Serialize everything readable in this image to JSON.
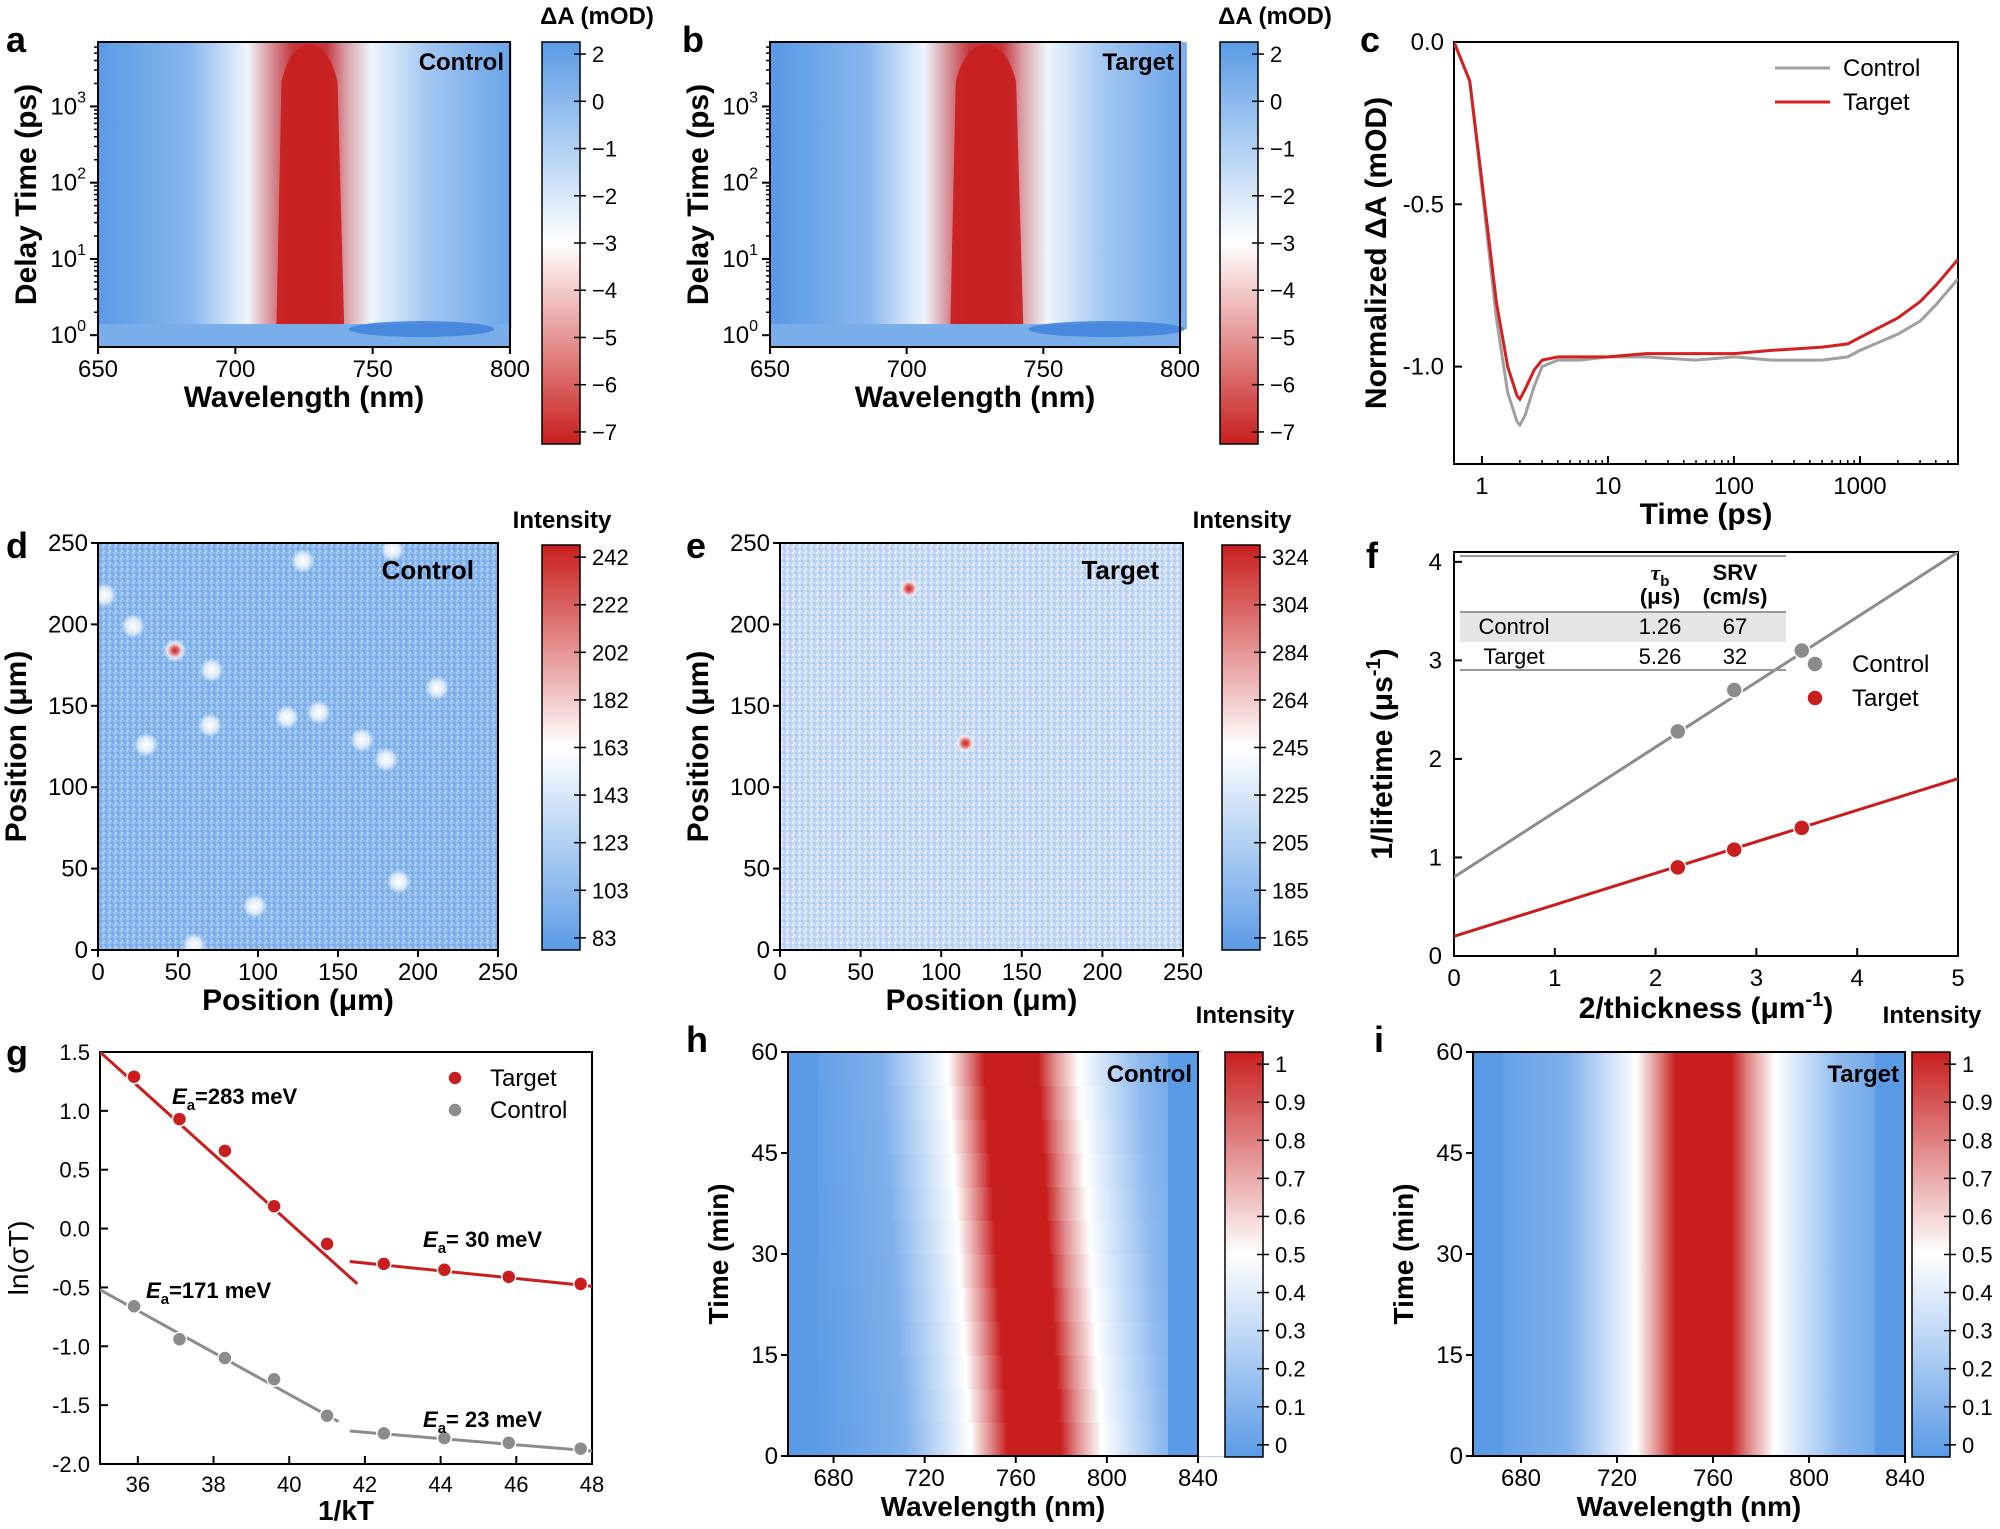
{
  "panels": [
    {
      "letter": "a"
    },
    {
      "letter": "b"
    },
    {
      "letter": "c"
    },
    {
      "letter": "d"
    },
    {
      "letter": "e"
    },
    {
      "letter": "f"
    },
    {
      "letter": "g"
    },
    {
      "letter": "h"
    },
    {
      "letter": "i"
    }
  ],
  "colors": {
    "red": "#c81e1e",
    "blue": "#5b9be6",
    "white": "#ffffff",
    "gray": "#8c8c8c",
    "control_line": "#a0a0a0",
    "target_line": "#d42020"
  },
  "chart_data": [
    {
      "id": "a",
      "type": "heatmap",
      "annotation": "Control",
      "xlabel": "Wavelength (nm)",
      "ylabel": "Delay Time (ps)",
      "x_ticks": [
        "650",
        "700",
        "750",
        "800"
      ],
      "y_ticks": [
        {
          "base": "10",
          "exp": "0"
        },
        {
          "base": "10",
          "exp": "1"
        },
        {
          "base": "10",
          "exp": "2"
        },
        {
          "base": "10",
          "exp": "3"
        }
      ],
      "xlim": [
        650,
        800
      ],
      "ylim_log": [
        0.7,
        7000
      ],
      "band": {
        "center": 727,
        "halfwidth": 12,
        "start_delay": 1.4
      },
      "colorbar": {
        "title": "ΔA (mOD)",
        "ticks": [
          "2",
          "0",
          "−1",
          "−2",
          "−3",
          "−4",
          "−5",
          "−6",
          "−7"
        ],
        "range": [
          2.3,
          -7.2
        ]
      }
    },
    {
      "id": "b",
      "type": "heatmap",
      "annotation": "Target",
      "xlabel": "Wavelength (nm)",
      "ylabel": "Delay Time (ps)",
      "x_ticks": [
        "650",
        "700",
        "750",
        "800"
      ],
      "y_ticks": [
        {
          "base": "10",
          "exp": "0"
        },
        {
          "base": "10",
          "exp": "1"
        },
        {
          "base": "10",
          "exp": "2"
        },
        {
          "base": "10",
          "exp": "3"
        }
      ],
      "xlim": [
        650,
        800
      ],
      "ylim_log": [
        0.7,
        7000
      ],
      "band": {
        "center": 729,
        "halfwidth": 13,
        "start_delay": 1.4
      },
      "colorbar": {
        "title": "ΔA (mOD)",
        "ticks": [
          "2",
          "0",
          "−1",
          "−2",
          "−3",
          "−4",
          "−5",
          "−6",
          "−7"
        ],
        "range": [
          2.3,
          -7.2
        ]
      }
    },
    {
      "id": "c",
      "type": "line",
      "xscale": "log",
      "xlabel": "Time (ps)",
      "ylabel": "Normalized ΔA (mOD)",
      "xlim": [
        0.6,
        6000
      ],
      "ylim": [
        -1.3,
        0.0
      ],
      "x_ticks": [
        {
          "v": 1,
          "label": "1"
        },
        {
          "v": 10,
          "label": "10"
        },
        {
          "v": 100,
          "label": "100"
        },
        {
          "v": 1000,
          "label": "1000"
        }
      ],
      "y_ticks": [
        {
          "v": 0.0,
          "label": "0.0"
        },
        {
          "v": -0.5,
          "label": "-0.5"
        },
        {
          "v": -1.0,
          "label": "-1.0"
        }
      ],
      "legend": "top-right",
      "series": [
        {
          "name": "Control",
          "x": [
            0.6,
            0.8,
            1.0,
            1.3,
            1.6,
            1.9,
            2.0,
            2.2,
            2.6,
            3,
            4,
            6,
            10,
            20,
            50,
            100,
            200,
            500,
            800,
            1000,
            2000,
            3000,
            4000,
            6000
          ],
          "y": [
            0.0,
            -0.12,
            -0.45,
            -0.85,
            -1.08,
            -1.17,
            -1.18,
            -1.15,
            -1.06,
            -1.0,
            -0.98,
            -0.98,
            -0.97,
            -0.97,
            -0.98,
            -0.97,
            -0.98,
            -0.98,
            -0.97,
            -0.95,
            -0.9,
            -0.86,
            -0.81,
            -0.73
          ]
        },
        {
          "name": "Target",
          "x": [
            0.6,
            0.8,
            1.0,
            1.3,
            1.6,
            1.9,
            2.0,
            2.2,
            2.6,
            3,
            4,
            6,
            10,
            20,
            50,
            100,
            200,
            500,
            800,
            1000,
            2000,
            3000,
            4000,
            6000
          ],
          "y": [
            0.0,
            -0.12,
            -0.43,
            -0.8,
            -1.0,
            -1.09,
            -1.1,
            -1.07,
            -1.01,
            -0.98,
            -0.97,
            -0.97,
            -0.97,
            -0.96,
            -0.96,
            -0.96,
            -0.95,
            -0.94,
            -0.93,
            -0.91,
            -0.85,
            -0.8,
            -0.75,
            -0.67
          ]
        }
      ]
    },
    {
      "id": "d",
      "type": "heatmap",
      "annotation": "Control",
      "xlabel": "Position (μm)",
      "ylabel": "Position (μm)",
      "x_ticks": [
        "0",
        "50",
        "100",
        "150",
        "200",
        "250"
      ],
      "y_ticks": [
        "0",
        "50",
        "100",
        "150",
        "200",
        "250"
      ],
      "xlim": [
        0,
        250
      ],
      "ylim": [
        0,
        250
      ],
      "spots": [
        [
          184,
          246
        ],
        [
          128,
          239
        ],
        [
          22,
          199
        ],
        [
          48,
          184
        ],
        [
          71,
          172
        ],
        [
          118,
          143
        ],
        [
          138,
          146
        ],
        [
          165,
          129
        ],
        [
          180,
          117
        ],
        [
          212,
          161
        ],
        [
          70,
          138
        ],
        [
          30,
          126
        ],
        [
          188,
          42
        ],
        [
          98,
          27
        ],
        [
          60,
          3
        ],
        [
          4,
          218
        ]
      ],
      "strong_spots": [
        [
          48,
          184
        ]
      ],
      "colorbar": {
        "title": "Intensity",
        "ticks": [
          "242",
          "222",
          "202",
          "182",
          "163",
          "143",
          "123",
          "103",
          "83"
        ]
      }
    },
    {
      "id": "e",
      "type": "heatmap",
      "annotation": "Target",
      "xlabel": "Position (μm)",
      "ylabel": "Position (μm)",
      "x_ticks": [
        "0",
        "50",
        "100",
        "150",
        "200",
        "250"
      ],
      "y_ticks": [
        "0",
        "50",
        "100",
        "150",
        "200",
        "250"
      ],
      "xlim": [
        0,
        250
      ],
      "ylim": [
        0,
        250
      ],
      "spots": [
        [
          80,
          222
        ],
        [
          115,
          127
        ]
      ],
      "strong_spots": [
        [
          80,
          222
        ],
        [
          115,
          127
        ]
      ],
      "colorbar": {
        "title": "Intensity",
        "ticks": [
          "324",
          "304",
          "284",
          "264",
          "245",
          "225",
          "205",
          "185",
          "165"
        ]
      }
    },
    {
      "id": "f",
      "type": "scatter",
      "xlabel_main": "2/thickness (μm",
      "xlabel_sup": "-1",
      "xlabel_end": ")",
      "ylabel_main": "1/lifetime (μs",
      "ylabel_sup": "-1",
      "ylabel_end": ")",
      "xlim": [
        0,
        5
      ],
      "ylim": [
        0,
        4.1
      ],
      "x_ticks": [
        "0",
        "1",
        "2",
        "3",
        "4",
        "5"
      ],
      "y_ticks": [
        "0",
        "1",
        "2",
        "3",
        "4"
      ],
      "legend": "right",
      "series": [
        {
          "name": "Control",
          "x": [
            2.22,
            2.78,
            3.45
          ],
          "y": [
            2.28,
            2.7,
            3.1
          ],
          "fit": {
            "intercept": 0.8,
            "slope": 0.66
          }
        },
        {
          "name": "Target",
          "x": [
            2.22,
            2.78,
            3.45
          ],
          "y": [
            0.9,
            1.08,
            1.3
          ],
          "fit": {
            "intercept": 0.2,
            "slope": 0.32
          }
        }
      ],
      "table": {
        "headers": [
          {
            "sym": "τ",
            "sub": "b",
            "unit": "(μs)"
          },
          {
            "sym": "SRV",
            "sub": "",
            "unit": "(cm/s)"
          }
        ],
        "rows": [
          {
            "label": "Control",
            "tau": "1.26",
            "srv": "67"
          },
          {
            "label": "Target",
            "tau": "5.26",
            "srv": "32"
          }
        ]
      }
    },
    {
      "id": "g",
      "type": "scatter",
      "xlabel": "1/kT",
      "ylabel": "ln(σT)",
      "xlim": [
        35,
        48
      ],
      "ylim": [
        -2.0,
        1.5
      ],
      "x_ticks": [
        "36",
        "38",
        "40",
        "42",
        "44",
        "46",
        "48"
      ],
      "y_ticks": [
        "1.5",
        "1.0",
        "0.5",
        "0.0",
        "-0.5",
        "-1.0",
        "-1.5",
        "-2.0"
      ],
      "legend": "top-right",
      "series": [
        {
          "name": "Target",
          "x": [
            35.9,
            37.1,
            38.3,
            39.6,
            41.0,
            42.5,
            44.1,
            45.8,
            47.7
          ],
          "y": [
            1.29,
            0.93,
            0.66,
            0.19,
            -0.13,
            -0.3,
            -0.35,
            -0.41,
            -0.47
          ]
        },
        {
          "name": "Control",
          "x": [
            35.9,
            37.1,
            38.3,
            39.6,
            41.0,
            42.5,
            44.1,
            45.8,
            47.7
          ],
          "y": [
            -0.66,
            -0.94,
            -1.1,
            -1.28,
            -1.59,
            -1.74,
            -1.78,
            -1.82,
            -1.87
          ]
        }
      ],
      "fits": [
        {
          "series": "Target",
          "x": [
            35.0,
            41.8
          ],
          "y": [
            1.5,
            -0.47
          ]
        },
        {
          "series": "Target",
          "x": [
            41.6,
            48.0
          ],
          "y": [
            -0.28,
            -0.49
          ]
        },
        {
          "series": "Control",
          "x": [
            35.0,
            41.3
          ],
          "y": [
            -0.52,
            -1.64
          ]
        },
        {
          "series": "Control",
          "x": [
            41.6,
            48.0
          ],
          "y": [
            -1.72,
            -1.89
          ]
        }
      ],
      "annotations": [
        {
          "pre": "E",
          "sub": "a",
          "text": "=283 meV",
          "series": "Target"
        },
        {
          "pre": "E",
          "sub": "a",
          "text": "= 30 meV",
          "series": "Target"
        },
        {
          "pre": "E",
          "sub": "a",
          "text": "=171 meV",
          "series": "Control"
        },
        {
          "pre": "E",
          "sub": "a",
          "text": "= 23 meV",
          "series": "Control"
        }
      ]
    },
    {
      "id": "h",
      "type": "heatmap",
      "annotation": "Control",
      "xlabel": "Wavelength (nm)",
      "ylabel": "Time (min)",
      "x_ticks": [
        "680",
        "720",
        "760",
        "800",
        "840"
      ],
      "y_ticks": [
        "0",
        "15",
        "30",
        "45",
        "60"
      ],
      "xlim": [
        660,
        840
      ],
      "ylim": [
        0,
        60
      ],
      "band": {
        "center_start": 768,
        "center_end": 758,
        "halfwidth": 14
      },
      "colorbar": {
        "title": "Intensity",
        "ticks": [
          "1",
          "0.9",
          "0.8",
          "0.7",
          "0.6",
          "0.5",
          "0.4",
          "0.3",
          "0.2",
          "0.1",
          "0"
        ]
      }
    },
    {
      "id": "i",
      "type": "heatmap",
      "annotation": "Target",
      "xlabel": "Wavelength (nm)",
      "ylabel": "Time (min)",
      "x_ticks": [
        "680",
        "720",
        "760",
        "800",
        "840"
      ],
      "y_ticks": [
        "0",
        "15",
        "30",
        "45",
        "60"
      ],
      "xlim": [
        660,
        840
      ],
      "ylim": [
        0,
        60
      ],
      "band": {
        "center_start": 756,
        "center_end": 756,
        "halfwidth": 14
      },
      "colorbar": {
        "title": "Intensity",
        "ticks": [
          "1",
          "0.9",
          "0.8",
          "0.7",
          "0.6",
          "0.5",
          "0.4",
          "0.3",
          "0.2",
          "0.1",
          "0"
        ]
      }
    }
  ]
}
